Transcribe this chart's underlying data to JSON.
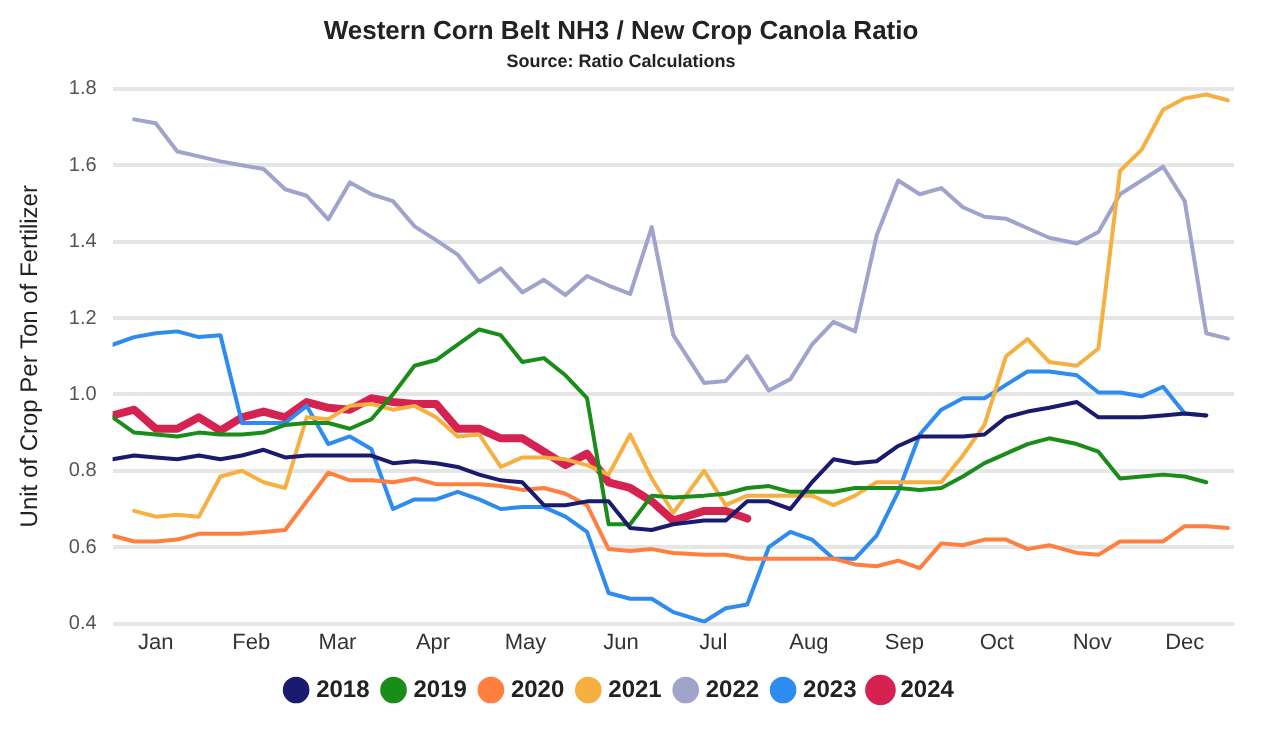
{
  "chart_data": {
    "type": "line",
    "title": "Western Corn Belt NH3 / New Crop Canola Ratio",
    "subtitle": "Source: Ratio Calculations",
    "ylabel": "Unit of Crop Per Ton of Fertilizer",
    "xlim": [
      "--01-01",
      "--12-31"
    ],
    "xticks": [
      {
        "value": "--01-15",
        "label": "Jan"
      },
      {
        "value": "--02-15",
        "label": "Feb"
      },
      {
        "value": "--03-15",
        "label": "Mar"
      },
      {
        "value": "--04-15",
        "label": "Apr"
      },
      {
        "value": "--05-15",
        "label": "May"
      },
      {
        "value": "--06-15",
        "label": "Jun"
      },
      {
        "value": "--07-15",
        "label": "Jul"
      },
      {
        "value": "--08-15",
        "label": "Aug"
      },
      {
        "value": "--09-15",
        "label": "Sep"
      },
      {
        "value": "--10-15",
        "label": "Oct"
      },
      {
        "value": "--11-15",
        "label": "Nov"
      },
      {
        "value": "--12-15",
        "label": "Dec"
      }
    ],
    "ylim": [
      0.4,
      1.8
    ],
    "yticks": [
      {
        "value": 0.4,
        "label": "0.4"
      },
      {
        "value": 0.6,
        "label": "0.6"
      },
      {
        "value": 0.8,
        "label": "0.8"
      },
      {
        "value": 1,
        "label": "1.0"
      },
      {
        "value": 1.2,
        "label": "1.2"
      },
      {
        "value": 1.4,
        "label": "1.4"
      },
      {
        "value": 1.6,
        "label": "1.6"
      },
      {
        "value": 1.8,
        "label": "1.8"
      }
    ],
    "grid": "y",
    "legend": "bottom",
    "marker": "none",
    "line_style": "solid",
    "series": [
      {
        "name": "2018",
        "color": "#1a1a6e",
        "x": [
          "--01-01",
          "--01-08",
          "--01-15",
          "--01-22",
          "--01-29",
          "--02-05",
          "--02-12",
          "--02-19",
          "--02-26",
          "--03-05",
          "--03-12",
          "--03-19",
          "--03-26",
          "--04-02",
          "--04-09",
          "--04-16",
          "--04-23",
          "--04-30",
          "--05-07",
          "--05-14",
          "--05-21",
          "--05-28",
          "--06-04",
          "--06-11",
          "--06-18",
          "--06-25",
          "--07-02",
          "--07-12",
          "--07-19",
          "--07-26",
          "--08-02",
          "--08-09",
          "--08-16",
          "--08-23",
          "--08-30",
          "--09-06",
          "--09-13",
          "--09-20",
          "--09-27",
          "--10-04",
          "--10-11",
          "--10-18",
          "--10-25",
          "--11-01",
          "--11-10",
          "--11-17",
          "--11-24",
          "--12-01",
          "--12-08",
          "--12-15",
          "--12-22"
        ],
        "values": [
          0.83,
          0.84,
          0.835,
          0.83,
          0.84,
          0.83,
          0.84,
          0.855,
          0.835,
          0.84,
          0.84,
          0.84,
          0.84,
          0.82,
          0.825,
          0.82,
          0.81,
          0.79,
          0.775,
          0.77,
          0.71,
          0.71,
          0.72,
          0.72,
          0.65,
          0.645,
          0.66,
          0.67,
          0.67,
          0.72,
          0.72,
          0.7,
          0.77,
          0.83,
          0.82,
          0.825,
          0.865,
          0.89,
          0.89,
          0.89,
          0.895,
          0.94,
          0.955,
          0.965,
          0.98,
          0.94,
          0.94,
          0.94,
          0.945,
          0.95,
          0.945
        ]
      },
      {
        "name": "2019",
        "color": "#1a8c1a",
        "x": [
          "--01-01",
          "--01-08",
          "--01-15",
          "--01-22",
          "--01-29",
          "--02-05",
          "--02-12",
          "--02-19",
          "--02-26",
          "--03-05",
          "--03-12",
          "--03-19",
          "--03-26",
          "--04-02",
          "--04-09",
          "--04-16",
          "--04-23",
          "--04-30",
          "--05-07",
          "--05-14",
          "--05-21",
          "--05-28",
          "--06-04",
          "--06-11",
          "--06-18",
          "--06-25",
          "--07-02",
          "--07-12",
          "--07-19",
          "--07-26",
          "--08-02",
          "--08-09",
          "--08-16",
          "--08-23",
          "--08-30",
          "--09-06",
          "--09-13",
          "--09-20",
          "--09-27",
          "--10-04",
          "--10-11",
          "--10-18",
          "--10-25",
          "--11-01",
          "--11-10",
          "--11-17",
          "--11-24",
          "--12-01",
          "--12-08",
          "--12-15",
          "--12-22"
        ],
        "values": [
          0.94,
          0.9,
          0.895,
          0.89,
          0.9,
          0.895,
          0.895,
          0.9,
          0.92,
          0.925,
          0.925,
          0.91,
          0.935,
          1.0,
          1.075,
          1.09,
          1.13,
          1.17,
          1.155,
          1.085,
          1.095,
          1.05,
          0.99,
          0.66,
          0.66,
          0.735,
          0.73,
          0.735,
          0.74,
          0.755,
          0.76,
          0.745,
          0.745,
          0.745,
          0.755,
          0.755,
          0.755,
          0.75,
          0.755,
          0.785,
          0.82,
          0.845,
          0.87,
          0.885,
          0.87,
          0.85,
          0.78,
          0.785,
          0.79,
          0.785,
          0.77
        ]
      },
      {
        "name": "2020",
        "color": "#ff7f3f",
        "x": [
          "--01-01",
          "--01-08",
          "--01-15",
          "--01-22",
          "--01-29",
          "--02-05",
          "--02-12",
          "--02-19",
          "--02-26",
          "--03-05",
          "--03-12",
          "--03-19",
          "--03-26",
          "--04-02",
          "--04-09",
          "--04-16",
          "--04-23",
          "--04-30",
          "--05-07",
          "--05-14",
          "--05-21",
          "--05-28",
          "--06-04",
          "--06-11",
          "--06-18",
          "--06-25",
          "--07-02",
          "--07-12",
          "--07-19",
          "--07-26",
          "--08-02",
          "--08-09",
          "--08-16",
          "--08-23",
          "--08-30",
          "--09-06",
          "--09-13",
          "--09-20",
          "--09-27",
          "--10-04",
          "--10-11",
          "--10-18",
          "--10-25",
          "--11-01",
          "--11-10",
          "--11-17",
          "--11-24",
          "--12-01",
          "--12-08",
          "--12-15",
          "--12-22",
          "--12-29"
        ],
        "values": [
          0.63,
          0.615,
          0.615,
          0.62,
          0.635,
          0.635,
          0.635,
          0.64,
          0.645,
          0.72,
          0.795,
          0.775,
          0.775,
          0.77,
          0.78,
          0.765,
          0.765,
          0.765,
          0.76,
          0.75,
          0.755,
          0.74,
          0.71,
          0.595,
          0.59,
          0.595,
          0.585,
          0.58,
          0.58,
          0.57,
          0.57,
          0.57,
          0.57,
          0.57,
          0.555,
          0.55,
          0.565,
          0.545,
          0.61,
          0.605,
          0.62,
          0.62,
          0.595,
          0.605,
          0.585,
          0.58,
          0.615,
          0.615,
          0.615,
          0.655,
          0.655,
          0.65
        ]
      },
      {
        "name": "2021",
        "color": "#f5b041",
        "x": [
          "--01-08",
          "--01-15",
          "--01-22",
          "--01-29",
          "--02-05",
          "--02-12",
          "--02-19",
          "--02-26",
          "--03-05",
          "--03-12",
          "--03-19",
          "--03-26",
          "--04-02",
          "--04-09",
          "--04-16",
          "--04-23",
          "--04-30",
          "--05-07",
          "--05-14",
          "--05-21",
          "--05-28",
          "--06-04",
          "--06-11",
          "--06-18",
          "--06-25",
          "--07-02",
          "--07-12",
          "--07-19",
          "--07-26",
          "--08-02",
          "--08-09",
          "--08-16",
          "--08-23",
          "--08-30",
          "--09-06",
          "--09-13",
          "--09-20",
          "--09-27",
          "--10-04",
          "--10-11",
          "--10-18",
          "--10-25",
          "--11-01",
          "--11-10",
          "--11-17",
          "--11-24",
          "--12-01",
          "--12-08",
          "--12-15",
          "--12-22",
          "--12-29"
        ],
        "values": [
          0.695,
          0.68,
          0.685,
          0.68,
          0.785,
          0.8,
          0.77,
          0.755,
          0.94,
          0.935,
          0.97,
          0.975,
          0.96,
          0.97,
          0.94,
          0.89,
          0.895,
          0.81,
          0.835,
          0.835,
          0.83,
          0.815,
          0.79,
          0.895,
          0.78,
          0.69,
          0.8,
          0.71,
          0.735,
          0.735,
          0.735,
          0.735,
          0.71,
          0.735,
          0.77,
          0.77,
          0.77,
          0.77,
          0.84,
          0.92,
          1.1,
          1.145,
          1.085,
          1.075,
          1.12,
          1.585,
          1.64,
          1.745,
          1.775,
          1.785,
          1.77
        ]
      },
      {
        "name": "2022",
        "color": "#a0a3cc",
        "x": [
          "--01-08",
          "--01-15",
          "--01-22",
          "--01-29",
          "--02-05",
          "--02-12",
          "--02-19",
          "--02-26",
          "--03-05",
          "--03-12",
          "--03-19",
          "--03-26",
          "--04-02",
          "--04-09",
          "--04-16",
          "--04-23",
          "--04-30",
          "--05-07",
          "--05-14",
          "--05-21",
          "--05-28",
          "--06-04",
          "--06-11",
          "--06-18",
          "--06-25",
          "--07-02",
          "--07-12",
          "--07-19",
          "--07-26",
          "--08-02",
          "--08-09",
          "--08-16",
          "--08-23",
          "--08-30",
          "--09-06",
          "--09-13",
          "--09-20",
          "--09-27",
          "--10-04",
          "--10-11",
          "--10-18",
          "--10-25",
          "--11-01",
          "--11-10",
          "--11-17",
          "--11-24",
          "--12-01",
          "--12-08",
          "--12-15",
          "--12-22",
          "--12-29"
        ],
        "values": [
          1.72,
          1.71,
          1.636,
          1.623,
          1.61,
          1.6,
          1.59,
          1.537,
          1.52,
          1.458,
          1.555,
          1.524,
          1.506,
          1.44,
          1.404,
          1.366,
          1.294,
          1.33,
          1.267,
          1.3,
          1.26,
          1.31,
          1.285,
          1.263,
          1.438,
          1.155,
          1.03,
          1.035,
          1.1,
          1.01,
          1.04,
          1.13,
          1.19,
          1.165,
          1.416,
          1.56,
          1.524,
          1.54,
          1.49,
          1.465,
          1.46,
          1.435,
          1.41,
          1.395,
          1.425,
          1.524,
          1.56,
          1.596,
          1.506,
          1.16,
          1.146
        ]
      },
      {
        "name": "2023",
        "color": "#2e8bf0",
        "x": [
          "--01-01",
          "--01-08",
          "--01-15",
          "--01-22",
          "--01-29",
          "--02-05",
          "--02-12",
          "--02-19",
          "--02-26",
          "--03-05",
          "--03-12",
          "--03-19",
          "--03-26",
          "--04-02",
          "--04-09",
          "--04-16",
          "--04-23",
          "--04-30",
          "--05-07",
          "--05-14",
          "--05-21",
          "--05-28",
          "--06-04",
          "--06-11",
          "--06-18",
          "--06-25",
          "--07-02",
          "--07-12",
          "--07-19",
          "--07-26",
          "--08-02",
          "--08-09",
          "--08-16",
          "--08-23",
          "--08-30",
          "--09-06",
          "--09-13",
          "--09-20",
          "--09-27",
          "--10-04",
          "--10-11",
          "--10-18",
          "--10-25",
          "--11-01",
          "--11-10",
          "--11-17",
          "--11-24",
          "--12-01",
          "--12-08",
          "--12-15",
          "--12-22"
        ],
        "values": [
          1.13,
          1.15,
          1.16,
          1.165,
          1.15,
          1.155,
          0.925,
          0.925,
          0.925,
          0.97,
          0.87,
          0.89,
          0.857,
          0.7,
          0.725,
          0.725,
          0.745,
          0.725,
          0.7,
          0.705,
          0.705,
          0.68,
          0.64,
          0.48,
          0.465,
          0.465,
          0.43,
          0.405,
          0.44,
          0.45,
          0.6,
          0.64,
          0.62,
          0.57,
          0.57,
          0.63,
          0.745,
          0.895,
          0.96,
          0.99,
          0.99,
          1.025,
          1.06,
          1.06,
          1.05,
          1.005,
          1.005,
          0.995,
          1.02,
          0.95,
          0.945
        ]
      },
      {
        "name": "2024",
        "color": "#d62250",
        "x": [
          "--01-01",
          "--01-08",
          "--01-15",
          "--01-22",
          "--01-29",
          "--02-05",
          "--02-12",
          "--02-19",
          "--02-26",
          "--03-05",
          "--03-12",
          "--03-19",
          "--03-26",
          "--04-02",
          "--04-09",
          "--04-16",
          "--04-23",
          "--04-30",
          "--05-07",
          "--05-14",
          "--05-21",
          "--05-28",
          "--06-04",
          "--06-11",
          "--06-18",
          "--06-25",
          "--07-02",
          "--07-12",
          "--07-19",
          "--07-26"
        ],
        "values": [
          0.945,
          0.96,
          0.91,
          0.91,
          0.94,
          0.905,
          0.94,
          0.955,
          0.94,
          0.98,
          0.965,
          0.96,
          0.99,
          0.98,
          0.975,
          0.975,
          0.91,
          0.91,
          0.885,
          0.885,
          0.85,
          0.815,
          0.845,
          0.77,
          0.755,
          0.72,
          0.67,
          0.695,
          0.695,
          0.675
        ]
      }
    ]
  }
}
